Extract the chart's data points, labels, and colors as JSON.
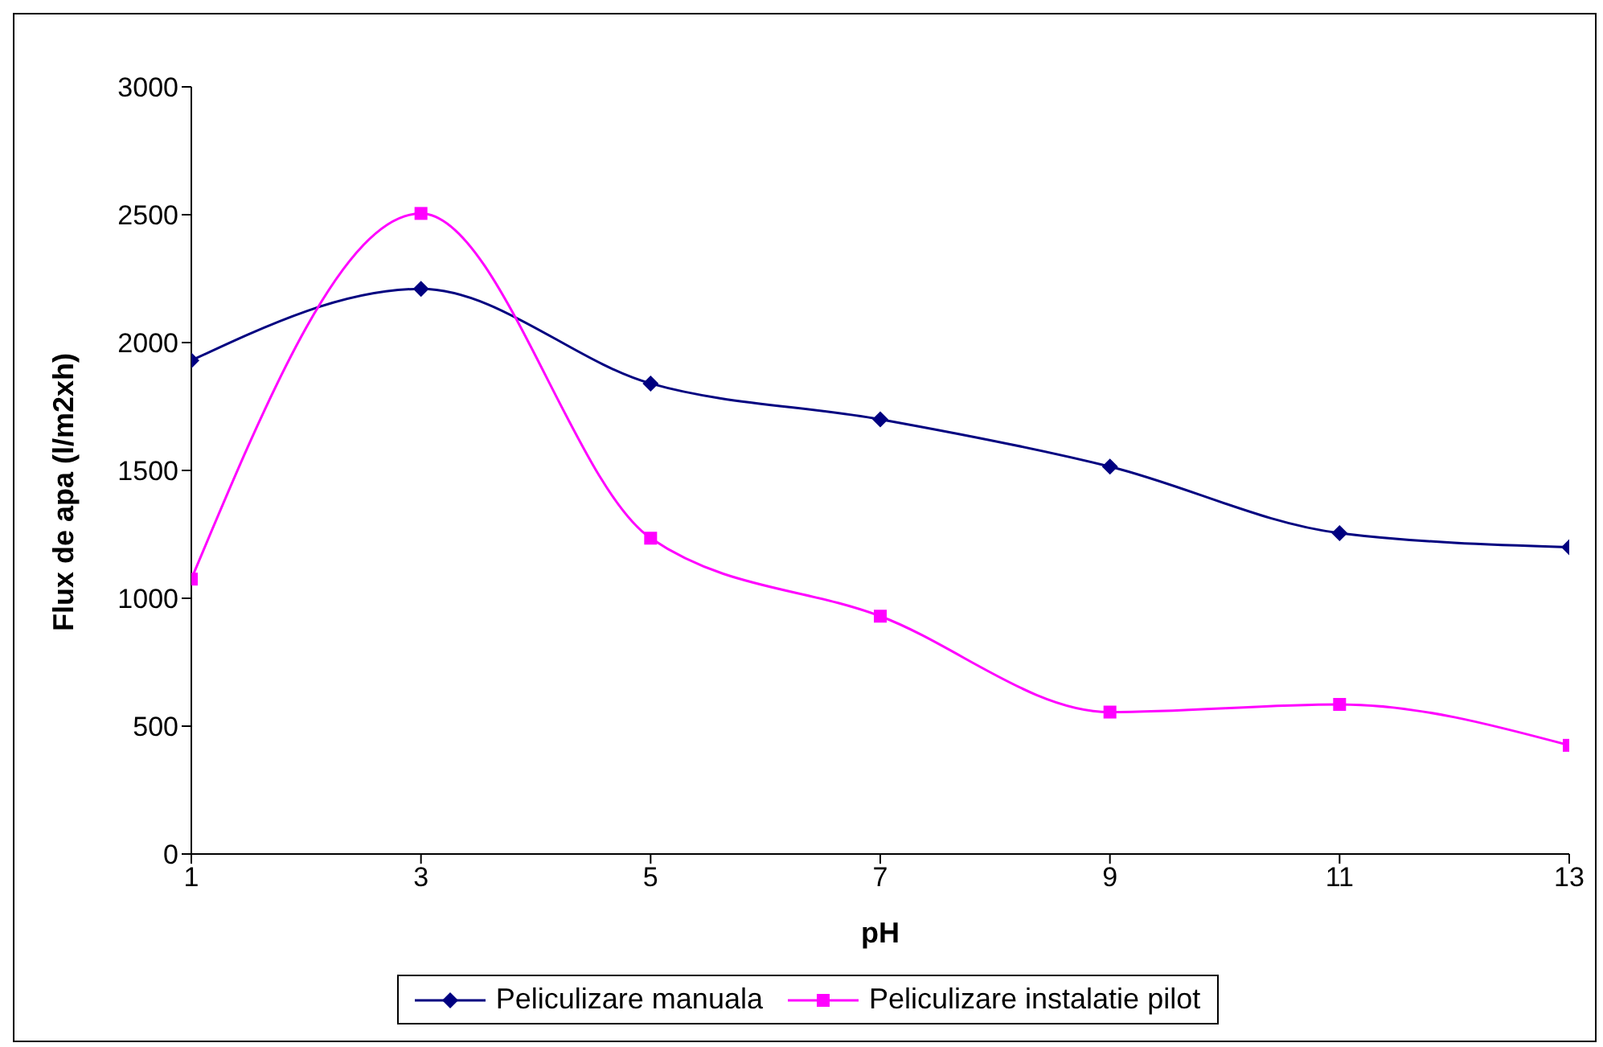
{
  "chart_data": {
    "type": "line",
    "xlabel": "pH",
    "ylabel": "Flux de apa (l/m2xh)",
    "x": [
      1,
      3,
      5,
      7,
      9,
      11,
      13
    ],
    "xlim": [
      1,
      13
    ],
    "xticks": [
      1,
      3,
      5,
      7,
      9,
      11,
      13
    ],
    "ylim": [
      0,
      3000
    ],
    "yticks": [
      0,
      500,
      1000,
      1500,
      2000,
      2500,
      3000
    ],
    "grid": false,
    "legend": "bottom",
    "line_style": "solid",
    "series": [
      {
        "name": "Peliculizare manuala",
        "color": "#000080",
        "marker": "diamond",
        "values": [
          1930,
          2210,
          1840,
          1700,
          1515,
          1255,
          1200
        ]
      },
      {
        "name": "Peliculizare instalatie pilot",
        "color": "#ff00ff",
        "marker": "square",
        "values": [
          1075,
          2505,
          1235,
          930,
          555,
          585,
          425
        ]
      }
    ]
  }
}
